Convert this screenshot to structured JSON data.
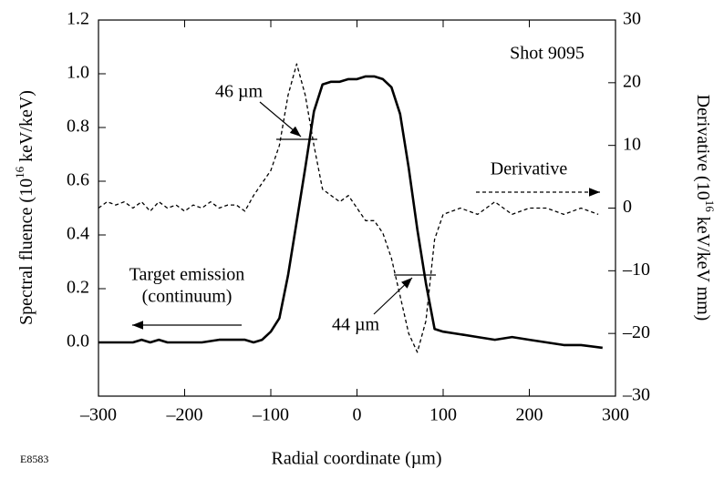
{
  "chart_data": {
    "type": "line",
    "title": "Shot 9095",
    "xlabel": "Radial coordinate (µm)",
    "ylabel": [
      "Spectral fluence (10",
      "16",
      " keV/keV)"
    ],
    "y2label": [
      "Derivative (10",
      "16",
      " keV/keV mm)"
    ],
    "figure_id": "E8583",
    "annotations": [
      "46 µm",
      "44 µm",
      "(continuum)"
    ],
    "xlim": [
      -300,
      300
    ],
    "xticks": [
      {
        "value": -300,
        "label": "–300"
      },
      {
        "value": -200,
        "label": "–200"
      },
      {
        "value": -100,
        "label": "–100"
      },
      0,
      100,
      200,
      300
    ],
    "ylim": [
      -0.2,
      1.2
    ],
    "yticks": [
      {
        "value": 0,
        "label": "0.0"
      },
      {
        "value": 0.2,
        "label": "0.2"
      },
      {
        "value": 0.4,
        "label": "0.4"
      },
      {
        "value": 0.6,
        "label": "0.6"
      },
      {
        "value": 0.8,
        "label": "0.8"
      },
      {
        "value": 1.0,
        "label": "1.0"
      },
      {
        "value": 1.2,
        "label": "1.2"
      }
    ],
    "y2lim": [
      -30,
      30
    ],
    "y2ticks": [
      {
        "value": -30,
        "label": "–30"
      },
      {
        "value": -20,
        "label": "–20"
      },
      {
        "value": -10,
        "label": "–10"
      },
      0,
      10,
      20,
      30
    ],
    "series": [
      {
        "name": "Target emission",
        "color": "#000000",
        "dash": false,
        "x": [
          -300,
          -280,
          -260,
          -250,
          -240,
          -230,
          -220,
          -200,
          -180,
          -160,
          -140,
          -130,
          -120,
          -110,
          -100,
          -90,
          -80,
          -70,
          -60,
          -50,
          -40,
          -30,
          -20,
          -10,
          0,
          10,
          20,
          30,
          40,
          50,
          60,
          70,
          80,
          90,
          100,
          120,
          140,
          160,
          180,
          200,
          220,
          240,
          260,
          285
        ],
        "values": [
          0,
          0,
          0,
          0.01,
          0,
          0.01,
          0,
          0,
          0,
          0.01,
          0.01,
          0.01,
          0,
          0.01,
          0.04,
          0.09,
          0.25,
          0.45,
          0.65,
          0.86,
          0.96,
          0.97,
          0.97,
          0.98,
          0.98,
          0.99,
          0.99,
          0.98,
          0.95,
          0.85,
          0.65,
          0.42,
          0.22,
          0.05,
          0.04,
          0.03,
          0.02,
          0.01,
          0.02,
          0.01,
          0,
          -0.01,
          -0.01,
          -0.02
        ]
      },
      {
        "name": "Derivative",
        "color": "#000000",
        "dash": true,
        "axis": "y2",
        "x": [
          -300,
          -290,
          -280,
          -270,
          -260,
          -250,
          -240,
          -230,
          -220,
          -210,
          -200,
          -190,
          -180,
          -170,
          -160,
          -150,
          -140,
          -130,
          -120,
          -110,
          -100,
          -90,
          -80,
          -70,
          -60,
          -50,
          -40,
          -30,
          -20,
          -10,
          0,
          10,
          20,
          30,
          40,
          50,
          60,
          70,
          80,
          90,
          100,
          120,
          140,
          160,
          170,
          180,
          200,
          220,
          240,
          260,
          280
        ],
        "values": [
          0,
          1,
          0.5,
          1,
          0,
          1,
          -0.5,
          1,
          0,
          0.5,
          -0.5,
          0.5,
          0,
          1,
          0,
          0.5,
          0.5,
          -0.5,
          2,
          4,
          6,
          10,
          18,
          23,
          18,
          10,
          3,
          2,
          1,
          2,
          0,
          -2,
          -2,
          -4,
          -8,
          -14,
          -20,
          -23,
          -18,
          -5,
          -1,
          0,
          -1,
          1,
          0,
          -1,
          0,
          0,
          -1,
          0,
          -1
        ]
      }
    ]
  }
}
